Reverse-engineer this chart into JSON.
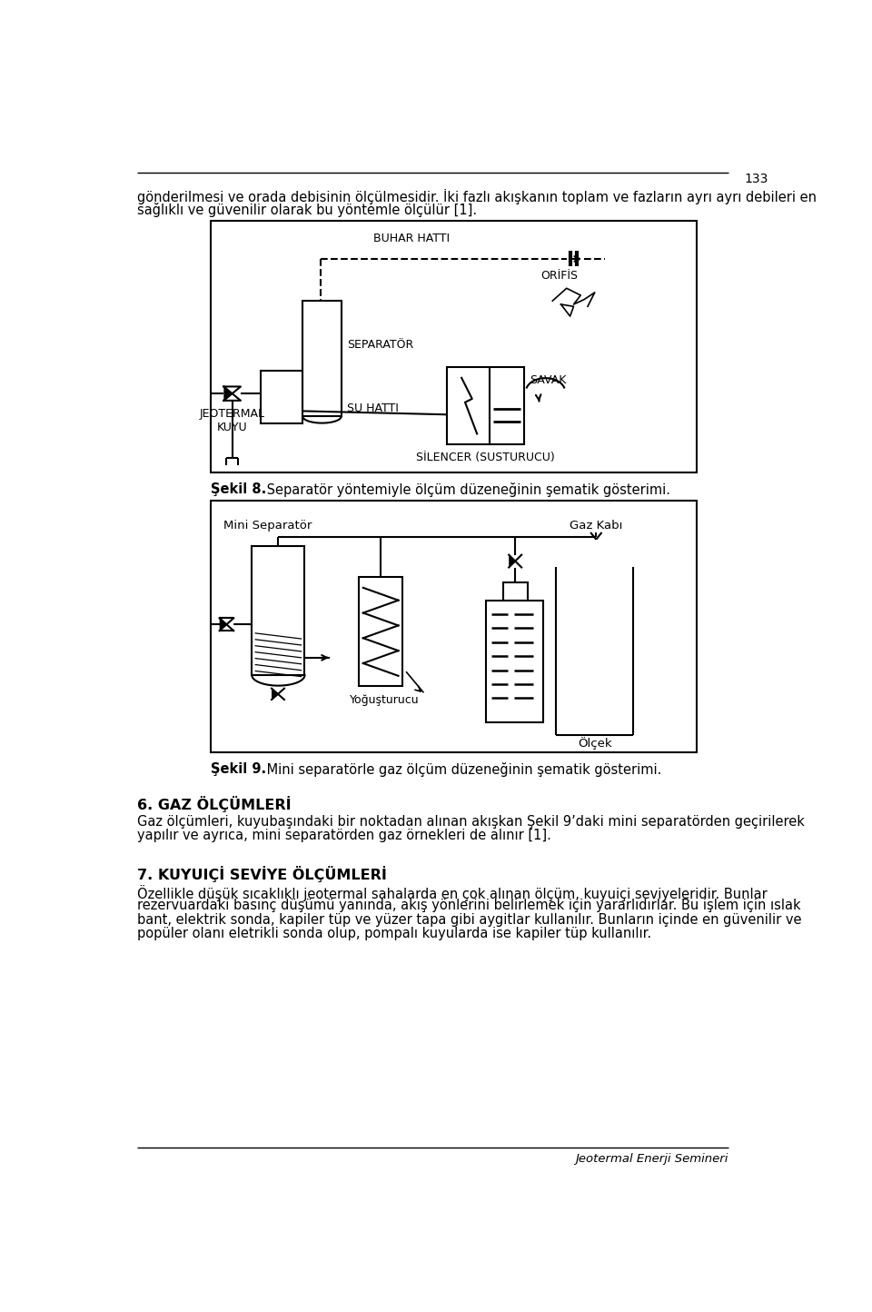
{
  "page_number": "133",
  "bg_color": "#ffffff",
  "paragraph1": "gönderilmesi ve orada debisinin ölçülmesidir. İki fazlı akışkanın toplam ve fazların ayrı ayrı debileri en",
  "paragraph1b": "sağlıklı ve güvenilir olarak bu yöntemle ölçülür [1].",
  "fig8_caption_bold": "Şekil 8.",
  "fig8_caption_rest": " Separatör yöntemiyle ölçüm düzeneğinin şematik gösterimi.",
  "fig9_caption_bold": "Şekil 9.",
  "fig9_caption_rest": " Mini separatörle gaz ölçüm düzeneğinin şematik gösterimi.",
  "section6_title": "6. GAZ ÖLÇÜMLERİ",
  "section6_text1": "Gaz ölçümleri, kuyubaşındaki bir noktadan alınan akışkan Şekil 9’daki mini separatörden geçirilerek",
  "section6_text2": "yapılır ve ayrıca, mini separatörden gaz örnekleri de alınır [1].",
  "section7_title": "7. KUYUIÇİ SEVİYE ÖLÇÜMLERİ",
  "section7_text1": "Özellikle düşük sıcaklıklı jeotermal sahalarda en çok alınan ölçüm, kuyuiçi seviyeleridir. Bunlar",
  "section7_text2": "rezervuardaki basınç düşümü yanında, akış yönlerini belirlemek için yararlıdırlar. Bu işlem için ıslak",
  "section7_text3": "bant, elektrik sonda, kapiler tüp ve yüzer tapa gibi aygitlar kullanılır. Bunların içinde en güvenilir ve",
  "section7_text4": "popüler olanı eletrikli sonda olup, pompalı kuyularda ise kapiler tüp kullanılır.",
  "footer_text": "Jeotermal Enerji Semineri"
}
